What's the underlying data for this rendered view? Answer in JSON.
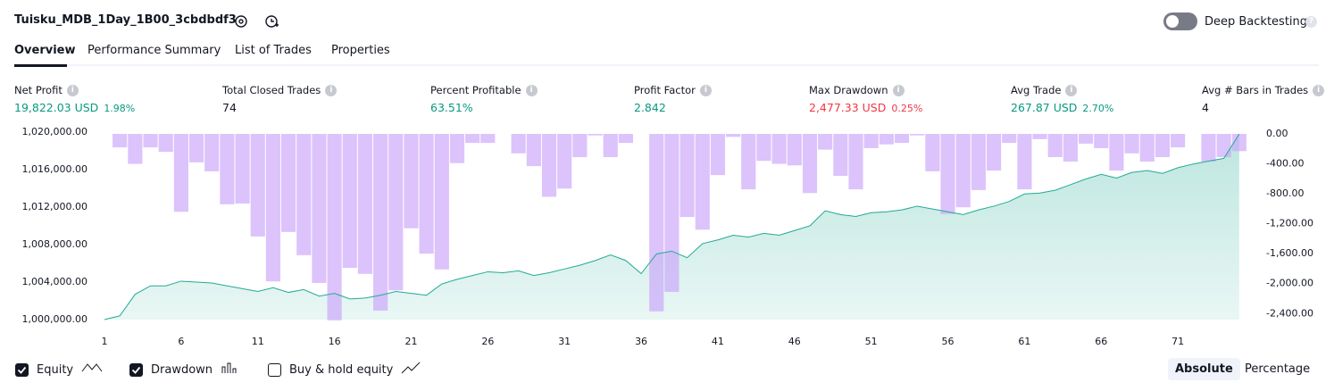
{
  "header": {
    "title": "Tuisku_MDB_1Day_1B00_3cbdbdf3",
    "toggle_label": "Deep Backtesting"
  },
  "tabs": [
    "Overview",
    "Performance Summary",
    "List of Trades",
    "Properties"
  ],
  "active_tab": 0,
  "metrics": [
    {
      "label": "Net Profit",
      "value": "19,822.03 USD",
      "extra": "1.98%",
      "tone": "positive"
    },
    {
      "label": "Total Closed Trades",
      "value": "74",
      "tone": "neutral"
    },
    {
      "label": "Percent Profitable",
      "value": "63.51%",
      "tone": "positive"
    },
    {
      "label": "Profit Factor",
      "value": "2.842",
      "tone": "positive"
    },
    {
      "label": "Max Drawdown",
      "value": "2,477.33 USD",
      "extra": "0.25%",
      "tone": "negative"
    },
    {
      "label": "Avg Trade",
      "value": "267.87 USD",
      "extra": "2.70%",
      "tone": "positive"
    },
    {
      "label": "Avg # Bars in Trades",
      "value": "4",
      "tone": "neutral"
    }
  ],
  "chart_data": {
    "type": "combo",
    "xlim": [
      1,
      76
    ],
    "xticks": [
      1,
      6,
      11,
      16,
      21,
      26,
      31,
      36,
      41,
      46,
      51,
      56,
      61,
      66,
      71
    ],
    "ylim": [
      1000000,
      1020000
    ],
    "yticks": [
      {
        "value": 1000000,
        "label": "1,000,000.00"
      },
      {
        "value": 1004000,
        "label": "1,004,000.00"
      },
      {
        "value": 1008000,
        "label": "1,008,000.00"
      },
      {
        "value": 1012000,
        "label": "1,012,000.00"
      },
      {
        "value": 1016000,
        "label": "1,016,000.00"
      },
      {
        "value": 1020000,
        "label": "1,020,000.00"
      }
    ],
    "y2lim": [
      -2480,
      24
    ],
    "y2ticks": [
      {
        "value": 0,
        "label": "0.00"
      },
      {
        "value": -400,
        "label": "-400.00"
      },
      {
        "value": -800,
        "label": "-800.00"
      },
      {
        "value": -1200,
        "label": "-1,200.00"
      },
      {
        "value": -1600,
        "label": "-1,600.00"
      },
      {
        "value": -2000,
        "label": "-2,000.00"
      },
      {
        "value": -2400,
        "label": "-2,400.00"
      }
    ],
    "series": [
      {
        "name": "Equity",
        "type": "area",
        "color": "#22ab94",
        "x": [
          1,
          2,
          3,
          4,
          5,
          6,
          7,
          8,
          9,
          10,
          11,
          12,
          13,
          14,
          15,
          16,
          17,
          18,
          19,
          20,
          21,
          22,
          23,
          24,
          25,
          26,
          27,
          28,
          29,
          30,
          31,
          32,
          33,
          34,
          35,
          36,
          37,
          38,
          39,
          40,
          41,
          42,
          43,
          44,
          45,
          46,
          47,
          48,
          49,
          50,
          51,
          52,
          53,
          54,
          55,
          56,
          57,
          58,
          59,
          60,
          61,
          62,
          63,
          64,
          65,
          66,
          67,
          68,
          69,
          70,
          71,
          72,
          73,
          74,
          75
        ],
        "values": [
          1000000,
          1000400,
          1002700,
          1003600,
          1003600,
          1004100,
          1004000,
          1003900,
          1003600,
          1003300,
          1003000,
          1003400,
          1002900,
          1003200,
          1002500,
          1002800,
          1002200,
          1002300,
          1002600,
          1003000,
          1002800,
          1002600,
          1003800,
          1004300,
          1004700,
          1005100,
          1005000,
          1005200,
          1004700,
          1005000,
          1005400,
          1005800,
          1006300,
          1006900,
          1006300,
          1004900,
          1007000,
          1007300,
          1006600,
          1008100,
          1008500,
          1009000,
          1008800,
          1009200,
          1009000,
          1009500,
          1010000,
          1011600,
          1011200,
          1011000,
          1011400,
          1011500,
          1011700,
          1012100,
          1011800,
          1011500,
          1011200,
          1011700,
          1012100,
          1012600,
          1013400,
          1013500,
          1013800,
          1014400,
          1015000,
          1015500,
          1015100,
          1015700,
          1015900,
          1015600,
          1016200,
          1016600,
          1016900,
          1017200,
          1019800
        ]
      },
      {
        "name": "Drawdown",
        "type": "bar",
        "axis": "y2",
        "color": "#c9a3fa",
        "x": [
          2,
          3,
          4,
          5,
          6,
          7,
          8,
          9,
          10,
          11,
          12,
          13,
          14,
          15,
          16,
          17,
          18,
          19,
          20,
          21,
          22,
          23,
          24,
          25,
          26,
          27,
          28,
          29,
          30,
          31,
          32,
          33,
          34,
          35,
          36,
          37,
          38,
          39,
          40,
          41,
          42,
          43,
          44,
          45,
          46,
          47,
          48,
          49,
          50,
          51,
          52,
          53,
          54,
          55,
          56,
          57,
          58,
          59,
          60,
          61,
          62,
          63,
          64,
          65,
          66,
          67,
          68,
          69,
          70,
          71,
          72,
          73,
          74,
          75
        ],
        "values": [
          -180,
          -400,
          -180,
          -240,
          -1040,
          -380,
          -500,
          -940,
          -930,
          -1370,
          -1970,
          -1310,
          -1620,
          -1990,
          -2490,
          -1790,
          -1870,
          -2360,
          -2090,
          -1260,
          -1600,
          -1810,
          -390,
          -120,
          -120,
          0,
          -260,
          -430,
          -840,
          -730,
          -310,
          -20,
          -310,
          -120,
          0,
          -2370,
          -2110,
          -1110,
          -1280,
          -550,
          -40,
          -740,
          -360,
          -400,
          -420,
          -790,
          -210,
          -560,
          -740,
          -190,
          -140,
          -120,
          -20,
          -500,
          -1070,
          -980,
          -750,
          -490,
          -120,
          -740,
          -70,
          -310,
          -370,
          -130,
          -190,
          -490,
          -260,
          -370,
          -310,
          -180,
          0,
          -370,
          -310,
          -230
        ]
      }
    ],
    "legend_extra": "Buy & hold equity",
    "modes": [
      "Absolute",
      "Percentage"
    ],
    "active_mode": 0
  }
}
